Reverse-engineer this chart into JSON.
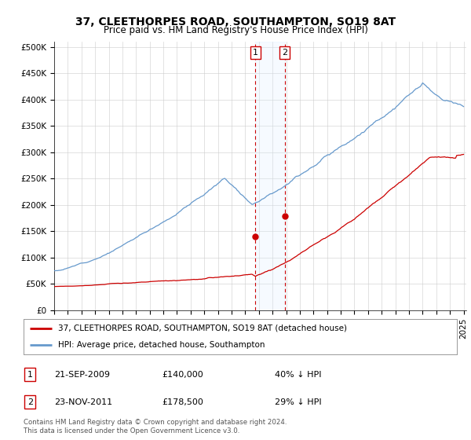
{
  "title": "37, CLEETHORPES ROAD, SOUTHAMPTON, SO19 8AT",
  "subtitle": "Price paid vs. HM Land Registry's House Price Index (HPI)",
  "yticks": [
    0,
    50000,
    100000,
    150000,
    200000,
    250000,
    300000,
    350000,
    400000,
    450000,
    500000
  ],
  "legend_line1": "37, CLEETHORPES ROAD, SOUTHAMPTON, SO19 8AT (detached house)",
  "legend_line2": "HPI: Average price, detached house, Southampton",
  "transaction1_label": "1",
  "transaction1_date": "21-SEP-2009",
  "transaction1_price": "£140,000",
  "transaction1_pct": "40% ↓ HPI",
  "transaction2_label": "2",
  "transaction2_date": "23-NOV-2011",
  "transaction2_price": "£178,500",
  "transaction2_pct": "29% ↓ HPI",
  "copyright": "Contains HM Land Registry data © Crown copyright and database right 2024.\nThis data is licensed under the Open Government Licence v3.0.",
  "hpi_color": "#6699cc",
  "price_color": "#cc0000",
  "highlight_color": "#ddeeff",
  "vline_color": "#cc0000",
  "marker_color": "#cc0000",
  "grid_color": "#cccccc",
  "background_color": "#ffffff",
  "title_fontsize": 10,
  "subtitle_fontsize": 8.5,
  "tick_fontsize": 7.5,
  "legend_fontsize": 7.5,
  "t1_year": 2009.75,
  "t1_price": 140000,
  "t2_year": 2011.9,
  "t2_price": 178500
}
